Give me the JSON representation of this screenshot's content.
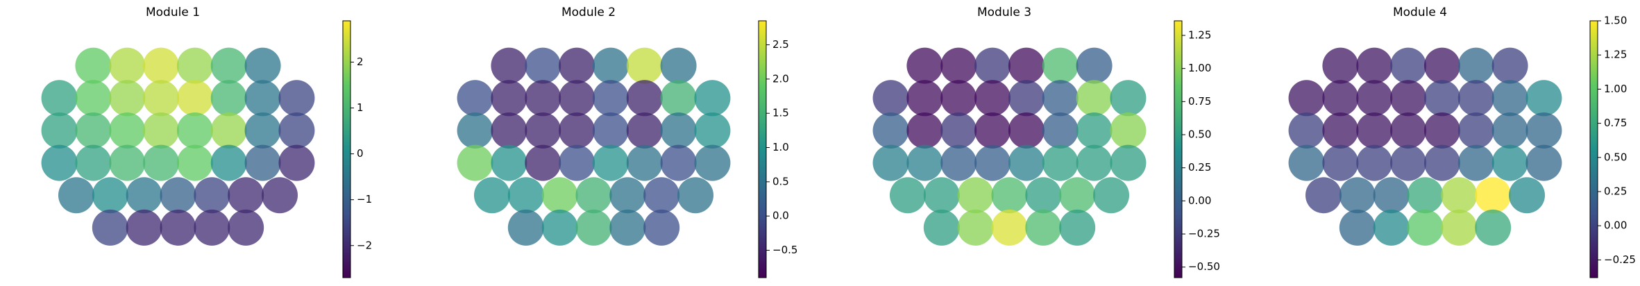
{
  "chart_data": [
    {
      "type": "scatter",
      "title": "Module 1",
      "x": [
        20,
        32,
        44,
        56,
        68,
        80,
        8,
        20,
        32,
        44,
        56,
        68,
        80,
        92,
        8,
        20,
        32,
        44,
        56,
        68,
        80,
        92,
        8,
        20,
        32,
        44,
        56,
        68,
        80,
        92,
        14,
        26,
        38,
        50,
        62,
        74,
        86,
        26,
        38,
        50,
        62,
        74
      ],
      "y": [
        85,
        85,
        85,
        85,
        85,
        85,
        70,
        70,
        70,
        70,
        70,
        70,
        70,
        70,
        55,
        55,
        55,
        55,
        55,
        55,
        55,
        55,
        40,
        40,
        40,
        40,
        40,
        40,
        40,
        40,
        25,
        25,
        25,
        25,
        25,
        25,
        25,
        10,
        10,
        10,
        10,
        10
      ],
      "values": [
        1.5,
        2.2,
        2.5,
        2,
        1,
        -0.5,
        0.5,
        1.5,
        2,
        2.3,
        2.5,
        1,
        -0.5,
        -1.5,
        0.5,
        1,
        1.5,
        2,
        1.5,
        2,
        -0.5,
        -1.5,
        0,
        0.5,
        1,
        1,
        1.5,
        0,
        -1,
        -2,
        -0.5,
        0,
        -0.5,
        -1,
        -1.5,
        -2,
        -2,
        -1.5,
        -2,
        -2,
        -2,
        -2
      ],
      "xlim": [
        0,
        100
      ],
      "ylim": [
        0,
        100
      ],
      "clim": [
        -2.7,
        2.9
      ],
      "cticks": [
        {
          "value": -2,
          "label": "−2"
        },
        {
          "value": -1,
          "label": "−1"
        },
        0,
        1,
        2
      ],
      "colormap": [
        "#440154",
        "#3b528b",
        "#21918c",
        "#5ec962",
        "#fde725"
      ]
    },
    {
      "type": "scatter",
      "title": "Module 2",
      "x": [
        20,
        32,
        44,
        56,
        68,
        80,
        8,
        20,
        32,
        44,
        56,
        68,
        80,
        92,
        8,
        20,
        32,
        44,
        56,
        68,
        80,
        92,
        8,
        20,
        32,
        44,
        56,
        68,
        80,
        92,
        14,
        26,
        38,
        50,
        62,
        74,
        86,
        26,
        38,
        50,
        62,
        74
      ],
      "y": [
        85,
        85,
        85,
        85,
        85,
        85,
        70,
        70,
        70,
        70,
        70,
        70,
        70,
        70,
        55,
        55,
        55,
        55,
        55,
        55,
        55,
        55,
        40,
        40,
        40,
        40,
        40,
        40,
        40,
        40,
        25,
        25,
        25,
        25,
        25,
        25,
        25,
        10,
        10,
        10,
        10,
        10
      ],
      "values": [
        -0.5,
        0,
        -0.5,
        0.5,
        2.5,
        0.5,
        0,
        -0.5,
        -0.5,
        -0.5,
        0,
        -0.5,
        1.5,
        1,
        0.5,
        -0.5,
        -0.5,
        -0.5,
        0,
        -0.5,
        0.5,
        1,
        2,
        1,
        -0.5,
        0,
        1,
        0.5,
        0,
        0.5,
        1,
        1,
        2,
        1.5,
        0.5,
        0,
        0.5,
        0.5,
        1,
        1.5,
        0.5,
        0
      ],
      "xlim": [
        0,
        100
      ],
      "ylim": [
        0,
        100
      ],
      "clim": [
        -0.9,
        2.85
      ],
      "cticks": [
        {
          "value": -0.5,
          "label": "−0.5"
        },
        {
          "value": 0,
          "label": "0.0"
        },
        0.5,
        {
          "value": 1,
          "label": "1.0"
        },
        1.5,
        {
          "value": 2,
          "label": "2.0"
        },
        2.5
      ],
      "colormap": [
        "#440154",
        "#3b528b",
        "#21918c",
        "#5ec962",
        "#fde725"
      ]
    },
    {
      "type": "scatter",
      "title": "Module 3",
      "x": [
        20,
        32,
        44,
        56,
        68,
        80,
        8,
        20,
        32,
        44,
        56,
        68,
        80,
        92,
        8,
        20,
        32,
        44,
        56,
        68,
        80,
        92,
        8,
        20,
        32,
        44,
        56,
        68,
        80,
        92,
        14,
        26,
        38,
        50,
        62,
        74,
        86,
        26,
        38,
        50,
        62,
        74
      ],
      "y": [
        85,
        85,
        85,
        85,
        85,
        85,
        70,
        70,
        70,
        70,
        70,
        70,
        70,
        70,
        55,
        55,
        55,
        55,
        55,
        55,
        55,
        55,
        40,
        40,
        40,
        40,
        40,
        40,
        40,
        40,
        25,
        25,
        25,
        25,
        25,
        25,
        25,
        10,
        10,
        10,
        10,
        10
      ],
      "values": [
        -0.5,
        -0.5,
        -0.25,
        -0.5,
        0.75,
        0,
        -0.25,
        -0.5,
        -0.5,
        -0.5,
        -0.25,
        0,
        1,
        0.5,
        0,
        -0.5,
        -0.25,
        -0.5,
        -0.5,
        0,
        0.5,
        1,
        0.25,
        0.25,
        0,
        0,
        0.25,
        0.5,
        0.5,
        0.5,
        0.5,
        0.5,
        1,
        0.75,
        0.5,
        0.75,
        0.5,
        0.5,
        1,
        1.25,
        0.75,
        0.5
      ],
      "xlim": [
        0,
        100
      ],
      "ylim": [
        0,
        100
      ],
      "clim": [
        -0.58,
        1.36
      ],
      "cticks": [
        {
          "value": -0.5,
          "label": "−0.50"
        },
        {
          "value": -0.25,
          "label": "−0.25"
        },
        {
          "value": 0,
          "label": "0.00"
        },
        0.25,
        {
          "value": 0.5,
          "label": "0.50"
        },
        0.75,
        {
          "value": 1,
          "label": "1.00"
        },
        1.25
      ],
      "colormap": [
        "#440154",
        "#3b528b",
        "#21918c",
        "#5ec962",
        "#fde725"
      ]
    },
    {
      "type": "scatter",
      "title": "Module 4",
      "x": [
        20,
        32,
        44,
        56,
        68,
        80,
        8,
        20,
        32,
        44,
        56,
        68,
        80,
        92,
        8,
        20,
        32,
        44,
        56,
        68,
        80,
        92,
        8,
        20,
        32,
        44,
        56,
        68,
        80,
        92,
        14,
        26,
        38,
        50,
        62,
        74,
        86,
        26,
        38,
        50,
        62,
        74
      ],
      "y": [
        85,
        85,
        85,
        85,
        85,
        85,
        70,
        70,
        70,
        70,
        70,
        70,
        70,
        70,
        55,
        55,
        55,
        55,
        55,
        55,
        55,
        55,
        40,
        40,
        40,
        40,
        40,
        40,
        40,
        40,
        25,
        25,
        25,
        25,
        25,
        25,
        25,
        10,
        10,
        10,
        10,
        10
      ],
      "values": [
        -0.25,
        -0.25,
        0,
        -0.25,
        0.25,
        0,
        -0.25,
        -0.25,
        -0.25,
        -0.25,
        0,
        0,
        0.25,
        0.5,
        0,
        -0.25,
        -0.25,
        -0.25,
        -0.25,
        0,
        0.25,
        0.25,
        0.25,
        0,
        0,
        0,
        0,
        0.25,
        0.5,
        0.25,
        0,
        0.25,
        0.25,
        0.75,
        1.25,
        1.5,
        0.5,
        0.25,
        0.5,
        1,
        1.25,
        0.75
      ],
      "xlim": [
        0,
        100
      ],
      "ylim": [
        0,
        100
      ],
      "clim": [
        -0.38,
        1.5
      ],
      "cticks": [
        {
          "value": -0.25,
          "label": "−0.25"
        },
        {
          "value": 0,
          "label": "0.00"
        },
        0.25,
        {
          "value": 0.5,
          "label": "0.50"
        },
        0.75,
        {
          "value": 1,
          "label": "1.00"
        },
        1.25,
        {
          "value": 1.5,
          "label": "1.50"
        }
      ],
      "colormap": [
        "#440154",
        "#3b528b",
        "#21918c",
        "#5ec962",
        "#fde725"
      ]
    }
  ]
}
